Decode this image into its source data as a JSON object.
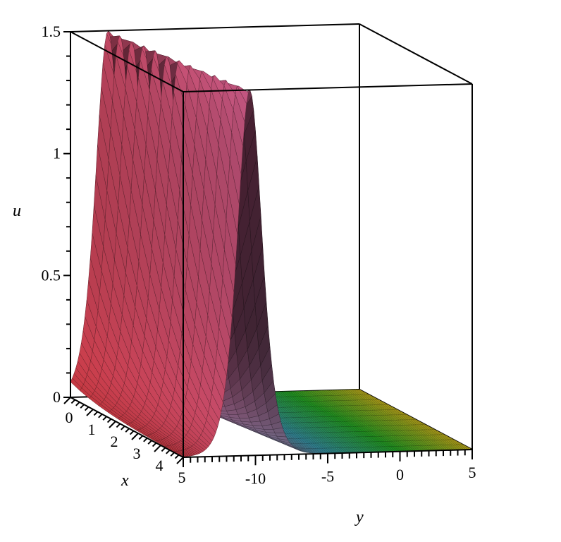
{
  "chart_data": {
    "type": "surface3d",
    "axes": {
      "u": {
        "label": "u",
        "range": [
          0,
          1.5
        ],
        "ticks": [
          "0",
          "0.5",
          "1",
          "1.5"
        ]
      },
      "x": {
        "label": "x",
        "range": [
          0,
          5
        ],
        "ticks": [
          "0",
          "1",
          "2",
          "3",
          "4",
          "5"
        ]
      },
      "y": {
        "label": "y",
        "range": [
          -15,
          5
        ],
        "ticks": [
          "-10",
          "-5",
          "0",
          "5"
        ]
      }
    },
    "surface": {
      "peak_u": 1.5,
      "peak_y_at_x0": -12.4,
      "peak_y_at_x5": -10.4,
      "width": 1.15,
      "colormap": [
        "#d03c46",
        "#c85c8c",
        "#3ca0b4",
        "#28b428",
        "#d2be1e"
      ]
    },
    "mesh": {
      "x_samples": 13,
      "y_samples": 161
    },
    "grid": false,
    "legend": false
  }
}
